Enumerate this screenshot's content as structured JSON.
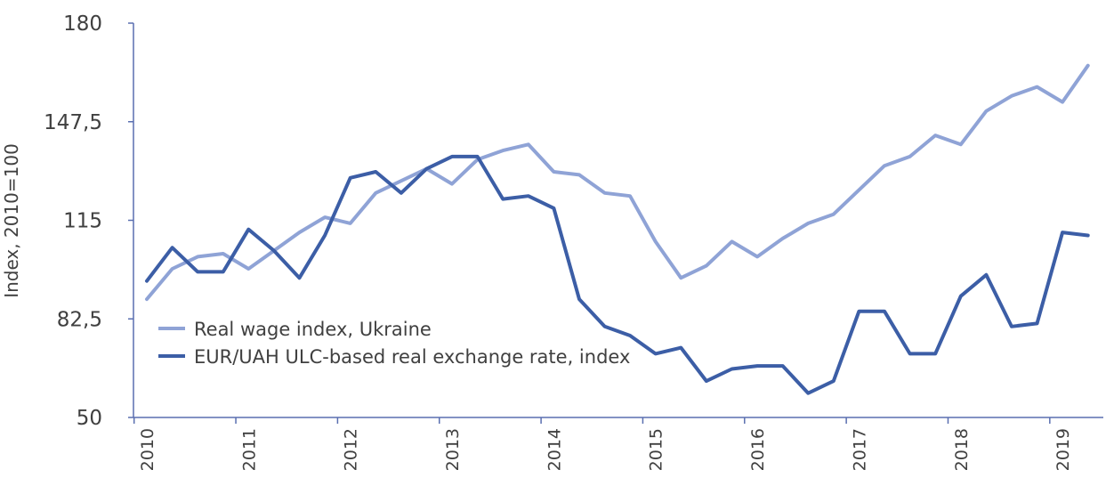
{
  "chart_data": {
    "type": "line",
    "ylabel": "Index, 2010=100",
    "ylim": [
      50,
      180
    ],
    "yticks": [
      "50",
      "82,5",
      "115",
      "147,5",
      "180"
    ],
    "ytick_values": [
      50,
      82.5,
      115,
      147.5,
      180
    ],
    "xlim": [
      2010,
      2019.375
    ],
    "xtick_labels": [
      "2010",
      "2011",
      "2012",
      "2013",
      "2014",
      "2015",
      "2016",
      "2017",
      "2018",
      "2019"
    ],
    "grid": false,
    "legend_position": "lower-left",
    "series": [
      {
        "name": "Real wage index, Ukraine",
        "color": "#8fa3d6",
        "x": [
          2010.0,
          2010.25,
          2010.5,
          2010.75,
          2011.0,
          2011.25,
          2011.5,
          2011.75,
          2012.0,
          2012.25,
          2012.5,
          2012.75,
          2013.0,
          2013.25,
          2013.5,
          2013.75,
          2014.0,
          2014.25,
          2014.5,
          2014.75,
          2015.0,
          2015.25,
          2015.5,
          2015.75,
          2016.0,
          2016.25,
          2016.5,
          2016.75,
          2017.0,
          2017.25,
          2017.5,
          2017.75,
          2018.0,
          2018.25,
          2018.5,
          2018.75,
          2019.0,
          2019.25
        ],
        "y": [
          89,
          99,
          103,
          104,
          99,
          105,
          111,
          116,
          114,
          124,
          128,
          132,
          127,
          135,
          138,
          140,
          131,
          130,
          124,
          123,
          108,
          96,
          100,
          108,
          103,
          109,
          114,
          117,
          125,
          133,
          136,
          143,
          140,
          151,
          156,
          159,
          154,
          166
        ]
      },
      {
        "name": "EUR/UAH ULC-based real exchange rate, index",
        "color": "#3c5ea6",
        "x": [
          2010.0,
          2010.25,
          2010.5,
          2010.75,
          2011.0,
          2011.25,
          2011.5,
          2011.75,
          2012.0,
          2012.25,
          2012.5,
          2012.75,
          2013.0,
          2013.25,
          2013.5,
          2013.75,
          2014.0,
          2014.25,
          2014.5,
          2014.75,
          2015.0,
          2015.25,
          2015.5,
          2015.75,
          2016.0,
          2016.25,
          2016.5,
          2016.75,
          2017.0,
          2017.25,
          2017.5,
          2017.75,
          2018.0,
          2018.25,
          2018.5,
          2018.75,
          2019.0,
          2019.25
        ],
        "y": [
          95,
          106,
          98,
          98,
          112,
          105,
          96,
          110,
          129,
          131,
          124,
          132,
          136,
          136,
          122,
          123,
          119,
          89,
          80,
          77,
          71,
          73,
          62,
          66,
          67,
          67,
          58,
          62,
          85,
          85,
          71,
          71,
          90,
          97,
          80,
          81,
          111,
          110
        ]
      }
    ]
  }
}
